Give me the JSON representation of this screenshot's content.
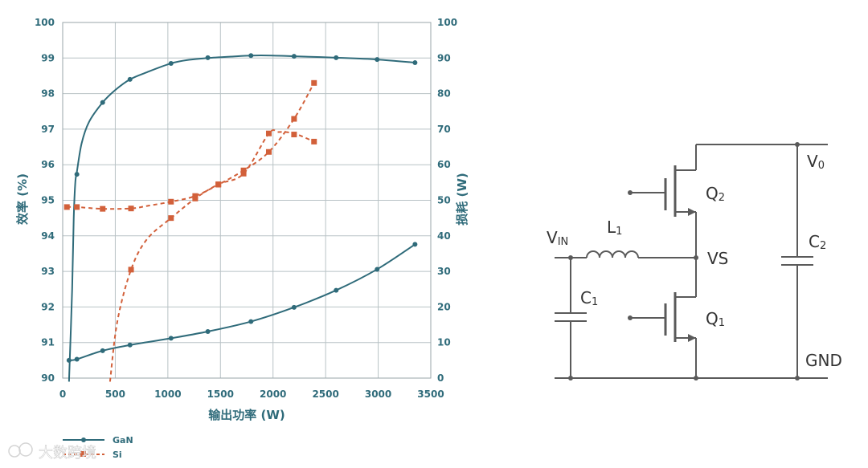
{
  "chart_data": {
    "type": "line",
    "title": "",
    "xlabel": "输出功率 (W)",
    "ylabel_left": "效率 (%)",
    "ylabel_right": "损耗 (W)",
    "xlim": [
      0,
      3500
    ],
    "ylim_left": [
      90,
      100
    ],
    "ylim_right": [
      0,
      100
    ],
    "x_ticks": [
      0,
      500,
      1000,
      1500,
      2000,
      2500,
      3000,
      3500
    ],
    "y_ticks_left": [
      90,
      91,
      92,
      93,
      94,
      95,
      96,
      97,
      98,
      99,
      100
    ],
    "y_ticks_right": [
      0,
      10,
      20,
      30,
      40,
      50,
      60,
      70,
      80,
      90,
      100
    ],
    "grid": true,
    "legend_position": "bottom-left",
    "series": [
      {
        "name": "GaN",
        "axis": "left",
        "role": "efficiency",
        "color": "#2f6b7a",
        "style": "solid",
        "marker": "circle",
        "curve": [
          [
            60,
            89.9
          ],
          [
            90,
            92.5
          ],
          [
            105,
            94.5
          ],
          [
            120,
            95.5
          ],
          [
            135,
            95.8
          ],
          [
            180,
            96.6
          ],
          [
            250,
            97.2
          ],
          [
            380,
            97.75
          ],
          [
            500,
            98.1
          ],
          [
            640,
            98.4
          ],
          [
            800,
            98.6
          ],
          [
            1030,
            98.85
          ],
          [
            1200,
            98.95
          ],
          [
            1380,
            99.0
          ],
          [
            1600,
            99.04
          ],
          [
            1790,
            99.07
          ],
          [
            2000,
            99.07
          ],
          [
            2200,
            99.05
          ],
          [
            2600,
            99.01
          ],
          [
            2990,
            98.96
          ],
          [
            3350,
            98.87
          ]
        ],
        "points": [
          [
            135,
            95.73
          ],
          [
            380,
            97.75
          ],
          [
            640,
            98.4
          ],
          [
            1030,
            98.85
          ],
          [
            1380,
            99.01
          ],
          [
            1790,
            99.07
          ],
          [
            2200,
            99.05
          ],
          [
            2600,
            99.01
          ],
          [
            2990,
            98.96
          ],
          [
            3350,
            98.87
          ]
        ]
      },
      {
        "name": "GaN",
        "axis": "right",
        "role": "loss",
        "color": "#2f6b7a",
        "style": "solid",
        "marker": "circle",
        "curve": [
          [
            60,
            5.0
          ],
          [
            135,
            5.3
          ],
          [
            380,
            7.7
          ],
          [
            640,
            9.3
          ],
          [
            1030,
            11.2
          ],
          [
            1380,
            13.1
          ],
          [
            1790,
            15.9
          ],
          [
            2200,
            19.9
          ],
          [
            2600,
            24.7
          ],
          [
            2990,
            30.6
          ],
          [
            3350,
            37.6
          ]
        ],
        "points": [
          [
            60,
            5.0
          ],
          [
            135,
            5.3
          ],
          [
            380,
            7.7
          ],
          [
            640,
            9.3
          ],
          [
            1030,
            11.2
          ],
          [
            1380,
            13.1
          ],
          [
            1790,
            15.9
          ],
          [
            2200,
            19.9
          ],
          [
            2600,
            24.7
          ],
          [
            2990,
            30.6
          ],
          [
            3350,
            37.6
          ]
        ]
      },
      {
        "name": "Si",
        "axis": "left",
        "role": "efficiency",
        "color": "#d2603a",
        "style": "dashed",
        "marker": "square",
        "curve": [
          [
            450,
            89.9
          ],
          [
            520,
            91.6
          ],
          [
            650,
            93.05
          ],
          [
            800,
            93.9
          ],
          [
            1030,
            94.5
          ],
          [
            1260,
            95.05
          ],
          [
            1480,
            95.45
          ],
          [
            1720,
            95.75
          ],
          [
            1960,
            96.88
          ],
          [
            2050,
            96.92
          ],
          [
            2200,
            96.88
          ],
          [
            2390,
            96.65
          ]
        ],
        "points": [
          [
            650,
            93.05
          ],
          [
            1030,
            94.5
          ],
          [
            1260,
            95.05
          ],
          [
            1480,
            95.45
          ],
          [
            1720,
            95.75
          ],
          [
            1960,
            96.88
          ],
          [
            2200,
            96.85
          ],
          [
            2390,
            96.65
          ]
        ]
      },
      {
        "name": "Si",
        "axis": "right",
        "role": "loss",
        "color": "#d2603a",
        "style": "dashed",
        "marker": "square",
        "curve": [
          [
            40,
            48.1
          ],
          [
            135,
            48.1
          ],
          [
            380,
            47.6
          ],
          [
            650,
            47.7
          ],
          [
            800,
            48.4
          ],
          [
            1030,
            49.6
          ],
          [
            1260,
            51.2
          ],
          [
            1480,
            54.4
          ],
          [
            1720,
            58.4
          ],
          [
            1960,
            63.6
          ],
          [
            2200,
            72.9
          ],
          [
            2390,
            83.0
          ]
        ],
        "points": [
          [
            40,
            48.1
          ],
          [
            135,
            48.1
          ],
          [
            380,
            47.6
          ],
          [
            650,
            47.7
          ],
          [
            1030,
            49.6
          ],
          [
            1260,
            51.2
          ],
          [
            1480,
            54.4
          ],
          [
            1720,
            58.4
          ],
          [
            1960,
            63.6
          ],
          [
            2200,
            72.9
          ],
          [
            2390,
            83.0
          ]
        ]
      }
    ]
  },
  "legend": {
    "items": [
      {
        "label": "GaN"
      },
      {
        "label": "Si"
      }
    ]
  },
  "circuit": {
    "labels": {
      "vin": "V",
      "vin_sub": "IN",
      "l1": "L",
      "l1_sub": "1",
      "c1": "C",
      "c1_sub": "1",
      "c2": "C",
      "c2_sub": "2",
      "q1": "Q",
      "q1_sub": "1",
      "q2": "Q",
      "q2_sub": "2",
      "vs": "VS",
      "v0": "V",
      "v0_sub": "0",
      "gnd": "GND"
    }
  },
  "watermark": {
    "text": "大数跨境"
  }
}
